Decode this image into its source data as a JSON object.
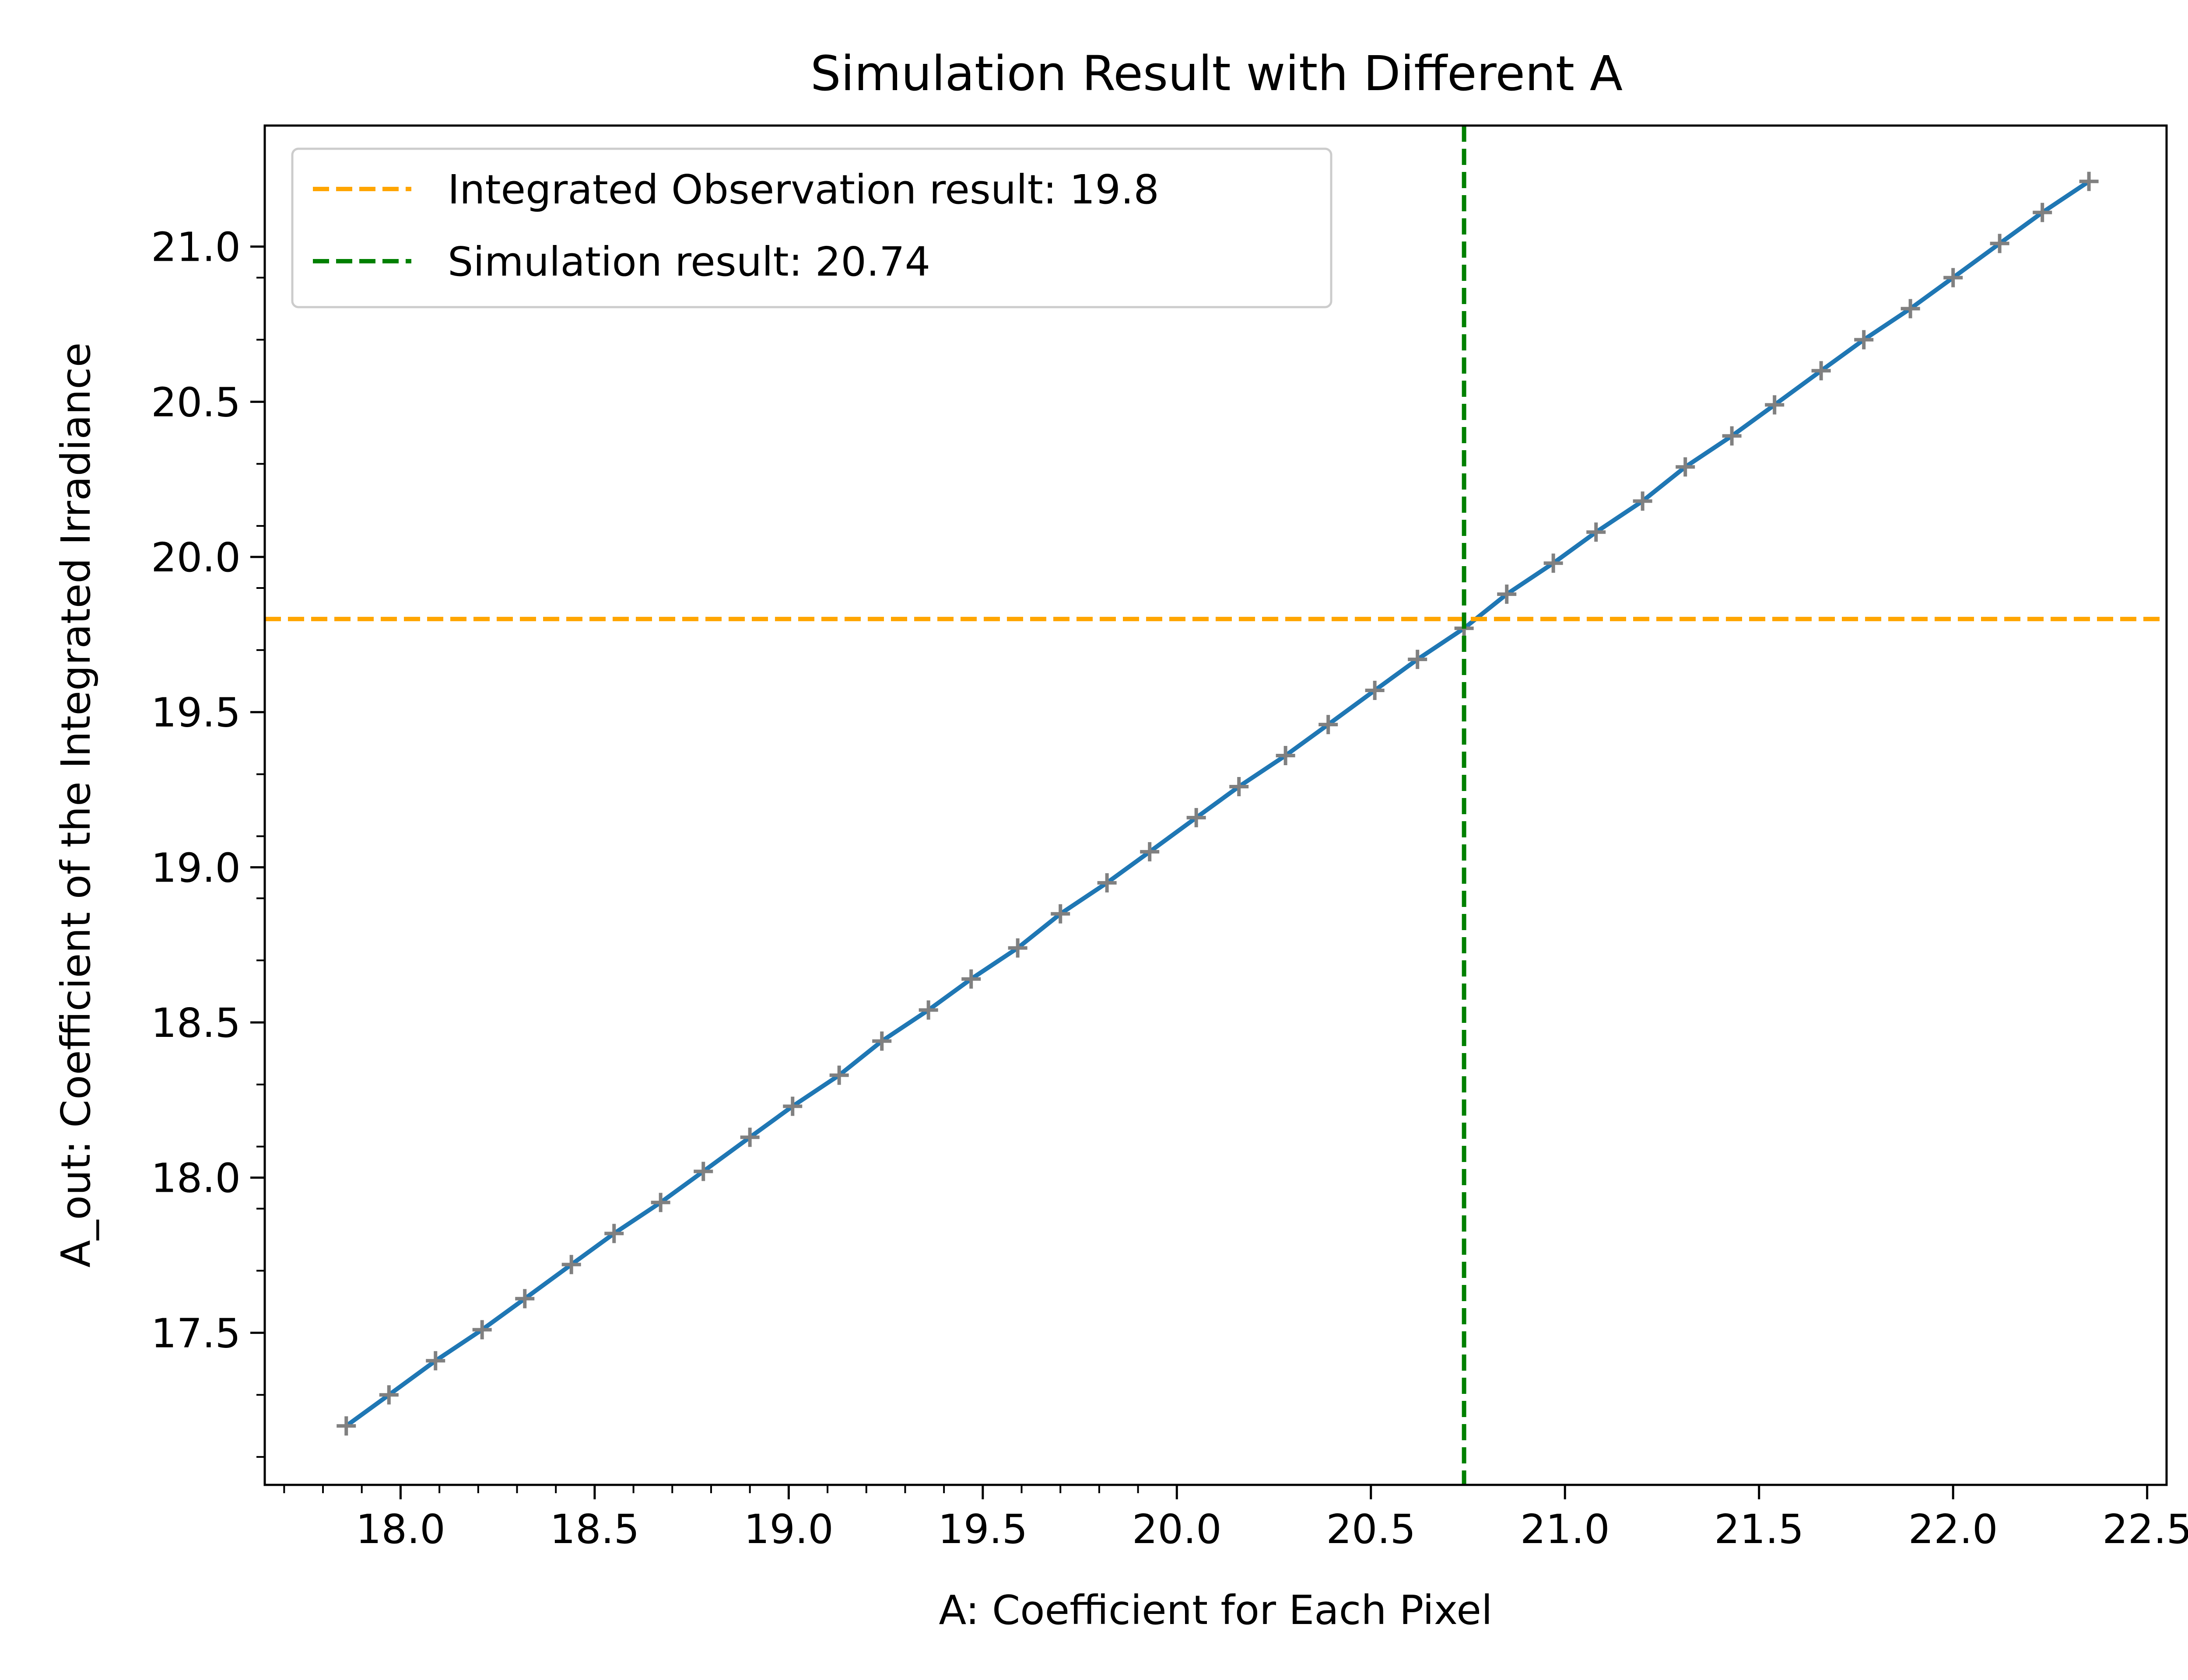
{
  "chart_data": {
    "type": "line",
    "title": "Simulation Result with Different A",
    "xlabel": "A: Coefficient for Each Pixel",
    "ylabel": "A_out: Coefficient of the Integrated Irradiance",
    "xlim": [
      17.65,
      22.55
    ],
    "ylim": [
      17.01,
      21.39
    ],
    "xticks": [
      18.0,
      18.5,
      19.0,
      19.5,
      20.0,
      20.5,
      21.0,
      21.5,
      22.0,
      22.5
    ],
    "xtick_labels": [
      "18.0",
      "18.5",
      "19.0",
      "19.5",
      "20.0",
      "20.5",
      "21.0",
      "21.5",
      "22.0",
      "22.5"
    ],
    "yticks": [
      17.5,
      18.0,
      18.5,
      19.0,
      19.5,
      20.0,
      20.5,
      21.0
    ],
    "ytick_labels": [
      "17.5",
      "18.0",
      "18.5",
      "19.0",
      "19.5",
      "20.0",
      "20.5",
      "21.0"
    ],
    "grid": false,
    "series": [
      {
        "type": "line",
        "color": "#1f77b4",
        "x": [
          17.86,
          17.97,
          18.09,
          18.21,
          18.32,
          18.44,
          18.55,
          18.67,
          18.78,
          18.9,
          19.01,
          19.13,
          19.24,
          19.36,
          19.47,
          19.59,
          19.7,
          19.82,
          19.93,
          20.05,
          20.16,
          20.28,
          20.39,
          20.51,
          20.62,
          20.74,
          20.85,
          20.97,
          21.08,
          21.2,
          21.31,
          21.43,
          21.54,
          21.66,
          21.77,
          21.89,
          22.0,
          22.12,
          22.23,
          22.35
        ],
        "y": [
          17.2,
          17.3,
          17.41,
          17.51,
          17.61,
          17.72,
          17.82,
          17.92,
          18.02,
          18.13,
          18.23,
          18.33,
          18.44,
          18.54,
          18.64,
          18.74,
          18.85,
          18.95,
          19.05,
          19.16,
          19.26,
          19.36,
          19.46,
          19.57,
          19.67,
          19.77,
          19.88,
          19.98,
          20.08,
          20.18,
          20.29,
          20.39,
          20.49,
          20.6,
          20.7,
          20.8,
          20.9,
          21.01,
          21.11,
          21.21
        ]
      },
      {
        "type": "scatter",
        "marker": "+",
        "color": "#808080",
        "x": [
          17.86,
          17.97,
          18.09,
          18.21,
          18.32,
          18.44,
          18.55,
          18.67,
          18.78,
          18.9,
          19.01,
          19.13,
          19.24,
          19.36,
          19.47,
          19.59,
          19.7,
          19.82,
          19.93,
          20.05,
          20.16,
          20.28,
          20.39,
          20.51,
          20.62,
          20.74,
          20.85,
          20.97,
          21.08,
          21.2,
          21.31,
          21.43,
          21.54,
          21.66,
          21.77,
          21.89,
          22.0,
          22.12,
          22.23,
          22.35
        ],
        "y": [
          17.2,
          17.3,
          17.41,
          17.51,
          17.61,
          17.72,
          17.82,
          17.92,
          18.02,
          18.13,
          18.23,
          18.33,
          18.44,
          18.54,
          18.64,
          18.74,
          18.85,
          18.95,
          19.05,
          19.16,
          19.26,
          19.36,
          19.46,
          19.57,
          19.67,
          19.77,
          19.88,
          19.98,
          20.08,
          20.18,
          20.29,
          20.39,
          20.49,
          20.6,
          20.7,
          20.8,
          20.9,
          21.01,
          21.11,
          21.21
        ]
      }
    ],
    "reference_lines": [
      {
        "orientation": "horizontal",
        "value": 19.8,
        "color": "#ffa500",
        "style": "dashed",
        "label": "Integrated Observation result: 19.8"
      },
      {
        "orientation": "vertical",
        "value": 20.74,
        "color": "#008000",
        "style": "dashed",
        "label": "Simulation result: 20.74"
      }
    ],
    "legend": {
      "placement": "upper-left"
    }
  }
}
